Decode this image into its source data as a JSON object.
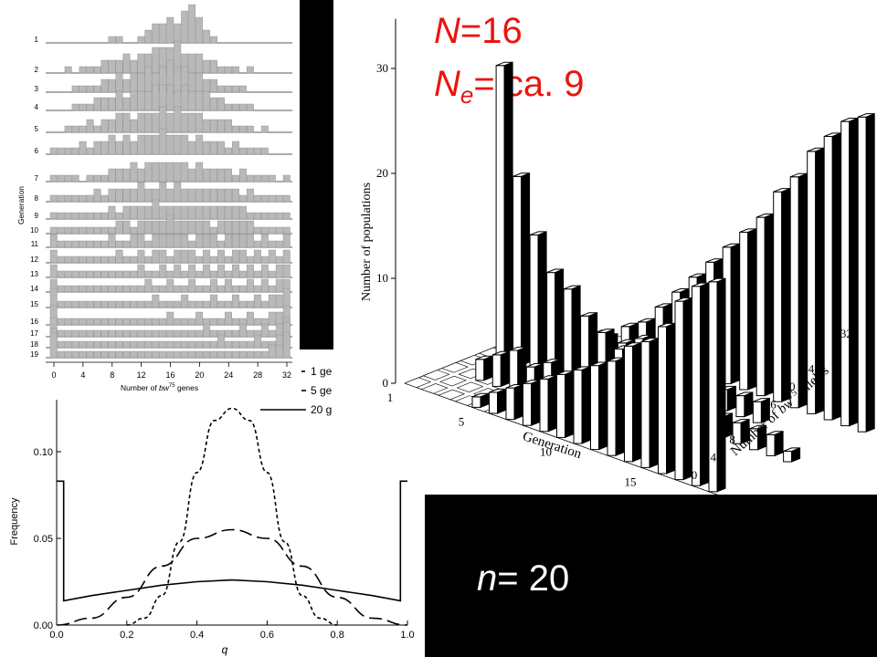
{
  "page": {
    "background": "#ffffff",
    "panel_color": "#000000",
    "title_color": "#e8160f"
  },
  "slide": {
    "title_line1_var": "N",
    "title_line1_rest": "=16",
    "title_line2_var": "N",
    "title_line2_sub": "e",
    "title_line2_rest": "= ca. 9",
    "n_var": "n",
    "n_rest": "= 20"
  },
  "chart_data": [
    {
      "type": "bar",
      "panel": "histogram-stack",
      "ylabel": "Generation",
      "xlabel": "Number of bw75 genes",
      "xlabel_parts": [
        "Number of ",
        "bw",
        "75",
        " genes"
      ],
      "generations": [
        "1",
        "2",
        "3",
        "4",
        "5",
        "6",
        "7",
        "8",
        "9",
        "10",
        "11",
        "12",
        "13",
        "14",
        "15",
        "16",
        "17",
        "18",
        "19"
      ],
      "x_ticks": [
        "0",
        "4",
        "8",
        "12",
        "16",
        "20",
        "24",
        "28",
        "32"
      ],
      "xlim": [
        0,
        32
      ],
      "bar_color": "#b9b9b9",
      "rows": [
        [
          0,
          0,
          0,
          0,
          0,
          0,
          0,
          0,
          1,
          1,
          0,
          0,
          1,
          2,
          3,
          3,
          4,
          3,
          5,
          6,
          4,
          2,
          1,
          0,
          0,
          0,
          0,
          0,
          0,
          0,
          0,
          0,
          0
        ],
        [
          0,
          0,
          1,
          0,
          1,
          1,
          1,
          2,
          2,
          2,
          3,
          2,
          3,
          3,
          4,
          4,
          4,
          5,
          3,
          3,
          3,
          2,
          2,
          1,
          1,
          1,
          0,
          1,
          0,
          0,
          0,
          0,
          0
        ],
        [
          0,
          0,
          0,
          1,
          1,
          1,
          1,
          2,
          2,
          3,
          2,
          3,
          3,
          4,
          3,
          4,
          5,
          4,
          4,
          3,
          3,
          2,
          2,
          1,
          1,
          1,
          1,
          0,
          0,
          0,
          0,
          0,
          0
        ],
        [
          0,
          0,
          0,
          1,
          1,
          1,
          2,
          2,
          2,
          3,
          2,
          3,
          3,
          3,
          4,
          4,
          4,
          3,
          4,
          3,
          3,
          3,
          2,
          2,
          1,
          1,
          1,
          1,
          0,
          0,
          0,
          0,
          0
        ],
        [
          0,
          0,
          1,
          1,
          1,
          2,
          1,
          2,
          2,
          3,
          3,
          2,
          3,
          3,
          3,
          4,
          3,
          4,
          3,
          3,
          3,
          2,
          2,
          2,
          2,
          1,
          1,
          1,
          0,
          1,
          0,
          0,
          0
        ],
        [
          1,
          1,
          1,
          1,
          2,
          1,
          2,
          2,
          3,
          2,
          3,
          2,
          3,
          3,
          3,
          4,
          3,
          3,
          3,
          2,
          3,
          2,
          2,
          2,
          1,
          2,
          1,
          1,
          1,
          1,
          0,
          0,
          0
        ],
        [
          1,
          1,
          1,
          1,
          0,
          1,
          1,
          1,
          2,
          2,
          2,
          3,
          2,
          3,
          3,
          3,
          3,
          3,
          3,
          2,
          3,
          2,
          2,
          2,
          2,
          1,
          2,
          1,
          1,
          1,
          1,
          0,
          1
        ],
        [
          1,
          1,
          1,
          1,
          1,
          1,
          2,
          1,
          2,
          2,
          2,
          2,
          3,
          2,
          2,
          3,
          2,
          3,
          2,
          2,
          2,
          2,
          2,
          2,
          2,
          2,
          1,
          2,
          1,
          1,
          1,
          1,
          1
        ],
        [
          1,
          1,
          1,
          1,
          1,
          1,
          1,
          1,
          2,
          1,
          2,
          2,
          2,
          2,
          3,
          2,
          2,
          2,
          2,
          2,
          2,
          2,
          2,
          2,
          2,
          2,
          2,
          1,
          1,
          1,
          1,
          1,
          1
        ],
        [
          1,
          1,
          1,
          1,
          1,
          1,
          1,
          1,
          1,
          2,
          2,
          1,
          2,
          2,
          2,
          2,
          3,
          2,
          2,
          2,
          2,
          2,
          1,
          2,
          2,
          2,
          2,
          2,
          1,
          1,
          1,
          1,
          1
        ],
        [
          2,
          1,
          1,
          1,
          1,
          1,
          1,
          1,
          2,
          1,
          1,
          2,
          2,
          1,
          2,
          2,
          2,
          2,
          2,
          1,
          2,
          2,
          2,
          1,
          2,
          2,
          2,
          2,
          1,
          2,
          1,
          1,
          2
        ],
        [
          2,
          1,
          1,
          1,
          1,
          1,
          1,
          1,
          1,
          2,
          1,
          1,
          2,
          1,
          2,
          2,
          1,
          2,
          2,
          2,
          1,
          2,
          1,
          2,
          1,
          2,
          2,
          1,
          2,
          1,
          2,
          1,
          2
        ],
        [
          2,
          1,
          1,
          1,
          1,
          1,
          1,
          1,
          1,
          1,
          1,
          1,
          2,
          1,
          1,
          2,
          1,
          2,
          1,
          2,
          1,
          2,
          1,
          2,
          1,
          2,
          1,
          2,
          1,
          2,
          1,
          2,
          2
        ],
        [
          2,
          1,
          1,
          1,
          1,
          1,
          1,
          1,
          1,
          1,
          1,
          1,
          1,
          2,
          1,
          1,
          2,
          1,
          1,
          2,
          1,
          1,
          2,
          1,
          2,
          1,
          1,
          2,
          1,
          2,
          1,
          2,
          2
        ],
        [
          3,
          1,
          1,
          1,
          1,
          1,
          1,
          1,
          1,
          1,
          1,
          1,
          1,
          1,
          2,
          1,
          1,
          1,
          2,
          1,
          1,
          1,
          2,
          1,
          1,
          2,
          1,
          1,
          2,
          1,
          2,
          2,
          3
        ],
        [
          3,
          1,
          1,
          1,
          1,
          1,
          1,
          1,
          1,
          1,
          1,
          1,
          1,
          1,
          1,
          1,
          2,
          1,
          1,
          1,
          2,
          1,
          1,
          1,
          2,
          1,
          1,
          2,
          1,
          1,
          2,
          2,
          3
        ],
        [
          3,
          1,
          1,
          1,
          1,
          1,
          1,
          1,
          1,
          1,
          1,
          1,
          1,
          1,
          1,
          1,
          1,
          1,
          1,
          1,
          1,
          2,
          1,
          1,
          1,
          1,
          2,
          1,
          1,
          2,
          1,
          2,
          3
        ],
        [
          3,
          1,
          1,
          1,
          1,
          1,
          1,
          1,
          1,
          1,
          1,
          1,
          1,
          1,
          1,
          1,
          1,
          1,
          1,
          1,
          1,
          1,
          1,
          2,
          1,
          1,
          1,
          1,
          2,
          1,
          1,
          2,
          4
        ],
        [
          4,
          1,
          1,
          1,
          1,
          1,
          1,
          1,
          1,
          1,
          1,
          1,
          1,
          1,
          1,
          1,
          1,
          1,
          1,
          1,
          1,
          1,
          1,
          1,
          1,
          1,
          1,
          1,
          1,
          1,
          2,
          2,
          4
        ]
      ]
    },
    {
      "type": "bar",
      "panel": "3d-histogram",
      "ylabel": "Number of populations",
      "xlabel": "Generation",
      "zlabel": "Number of bw75 alleles",
      "zlabel_parts": [
        "Number of ",
        "bw",
        "75",
        " alleles"
      ],
      "y_ticks": [
        "0",
        "10",
        "20",
        "30"
      ],
      "ylim": [
        0,
        33
      ],
      "generation_ticks": [
        "1",
        "5",
        "10",
        "15",
        "19"
      ],
      "allele_ticks": [
        "0",
        "4",
        "8",
        "16",
        "20",
        "24",
        "32"
      ],
      "bars": [
        {
          "g": 5,
          "a": 0,
          "v": 1
        },
        {
          "g": 6,
          "a": 0,
          "v": 2
        },
        {
          "g": 7,
          "a": 0,
          "v": 3
        },
        {
          "g": 8,
          "a": 0,
          "v": 4
        },
        {
          "g": 9,
          "a": 0,
          "v": 5
        },
        {
          "g": 10,
          "a": 0,
          "v": 6
        },
        {
          "g": 11,
          "a": 0,
          "v": 7
        },
        {
          "g": 12,
          "a": 0,
          "v": 8
        },
        {
          "g": 13,
          "a": 0,
          "v": 9
        },
        {
          "g": 14,
          "a": 0,
          "v": 11
        },
        {
          "g": 15,
          "a": 0,
          "v": 12
        },
        {
          "g": 16,
          "a": 0,
          "v": 14
        },
        {
          "g": 17,
          "a": 0,
          "v": 17
        },
        {
          "g": 18,
          "a": 0,
          "v": 19
        },
        {
          "g": 19,
          "a": 0,
          "v": 20
        },
        {
          "g": 3,
          "a": 8,
          "v": 2
        },
        {
          "g": 4,
          "a": 8,
          "v": 3
        },
        {
          "g": 5,
          "a": 8,
          "v": 4
        },
        {
          "g": 6,
          "a": 8,
          "v": 3
        },
        {
          "g": 7,
          "a": 8,
          "v": 4
        },
        {
          "g": 8,
          "a": 8,
          "v": 3
        },
        {
          "g": 9,
          "a": 8,
          "v": 3
        },
        {
          "g": 10,
          "a": 8,
          "v": 2
        },
        {
          "g": 11,
          "a": 8,
          "v": 2
        },
        {
          "g": 12,
          "a": 8,
          "v": 2
        },
        {
          "g": 13,
          "a": 8,
          "v": 1
        },
        {
          "g": 14,
          "a": 8,
          "v": 2
        },
        {
          "g": 2,
          "a": 16,
          "v": 28
        },
        {
          "g": 3,
          "a": 16,
          "v": 18
        },
        {
          "g": 4,
          "a": 16,
          "v": 13
        },
        {
          "g": 5,
          "a": 16,
          "v": 10
        },
        {
          "g": 6,
          "a": 16,
          "v": 9
        },
        {
          "g": 7,
          "a": 16,
          "v": 7
        },
        {
          "g": 8,
          "a": 16,
          "v": 6
        },
        {
          "g": 9,
          "a": 16,
          "v": 5
        },
        {
          "g": 10,
          "a": 16,
          "v": 5
        },
        {
          "g": 11,
          "a": 16,
          "v": 4
        },
        {
          "g": 12,
          "a": 16,
          "v": 4
        },
        {
          "g": 13,
          "a": 16,
          "v": 3
        },
        {
          "g": 14,
          "a": 16,
          "v": 3
        },
        {
          "g": 15,
          "a": 16,
          "v": 2
        },
        {
          "g": 16,
          "a": 16,
          "v": 2
        },
        {
          "g": 17,
          "a": 16,
          "v": 2
        },
        {
          "g": 18,
          "a": 16,
          "v": 2
        },
        {
          "g": 19,
          "a": 16,
          "v": 1
        },
        {
          "g": 5,
          "a": 24,
          "v": 2
        },
        {
          "g": 6,
          "a": 24,
          "v": 3
        },
        {
          "g": 7,
          "a": 24,
          "v": 3
        },
        {
          "g": 8,
          "a": 24,
          "v": 4
        },
        {
          "g": 9,
          "a": 24,
          "v": 4
        },
        {
          "g": 10,
          "a": 24,
          "v": 3
        },
        {
          "g": 11,
          "a": 24,
          "v": 3
        },
        {
          "g": 12,
          "a": 24,
          "v": 3
        },
        {
          "g": 13,
          "a": 24,
          "v": 2
        },
        {
          "g": 14,
          "a": 24,
          "v": 2
        },
        {
          "g": 15,
          "a": 24,
          "v": 2
        },
        {
          "g": 5,
          "a": 32,
          "v": 2
        },
        {
          "g": 6,
          "a": 32,
          "v": 3
        },
        {
          "g": 7,
          "a": 32,
          "v": 5
        },
        {
          "g": 8,
          "a": 32,
          "v": 7
        },
        {
          "g": 9,
          "a": 32,
          "v": 9
        },
        {
          "g": 10,
          "a": 32,
          "v": 11
        },
        {
          "g": 11,
          "a": 32,
          "v": 13
        },
        {
          "g": 12,
          "a": 32,
          "v": 15
        },
        {
          "g": 13,
          "a": 32,
          "v": 17
        },
        {
          "g": 14,
          "a": 32,
          "v": 20
        },
        {
          "g": 15,
          "a": 32,
          "v": 22
        },
        {
          "g": 16,
          "a": 32,
          "v": 25
        },
        {
          "g": 17,
          "a": 32,
          "v": 27
        },
        {
          "g": 18,
          "a": 32,
          "v": 29
        },
        {
          "g": 19,
          "a": 32,
          "v": 30
        }
      ]
    },
    {
      "type": "line",
      "panel": "frequency-distribution",
      "xlabel": "q",
      "ylabel": "Frequency",
      "xlim": [
        0,
        1
      ],
      "ylim": [
        0,
        0.13
      ],
      "x_ticks": [
        "0.0",
        "0.2",
        "0.4",
        "0.6",
        "0.8",
        "1.0"
      ],
      "y_ticks": [
        "0.00",
        "0.05",
        "0.10"
      ],
      "legend_position": "top-right",
      "series": [
        {
          "name": "1 ge",
          "style": "dotted",
          "x": [
            0.2,
            0.25,
            0.3,
            0.35,
            0.4,
            0.45,
            0.5,
            0.55,
            0.6,
            0.65,
            0.7,
            0.75,
            0.8
          ],
          "values": [
            0.0,
            0.004,
            0.017,
            0.048,
            0.088,
            0.118,
            0.125,
            0.118,
            0.088,
            0.048,
            0.017,
            0.004,
            0.0
          ]
        },
        {
          "name": "5 ge",
          "style": "dashed",
          "x": [
            0.0,
            0.1,
            0.2,
            0.3,
            0.4,
            0.5,
            0.6,
            0.7,
            0.8,
            0.9,
            1.0
          ],
          "values": [
            0.0,
            0.004,
            0.016,
            0.034,
            0.05,
            0.055,
            0.05,
            0.034,
            0.016,
            0.004,
            0.0
          ]
        },
        {
          "name": "20 g",
          "style": "solid",
          "x": [
            0.0,
            0.02,
            0.1,
            0.2,
            0.3,
            0.4,
            0.5,
            0.6,
            0.7,
            0.8,
            0.9,
            0.98,
            1.0
          ],
          "values": [
            0.083,
            0.014,
            0.017,
            0.02,
            0.023,
            0.025,
            0.026,
            0.025,
            0.023,
            0.02,
            0.017,
            0.014,
            0.083
          ]
        }
      ]
    }
  ]
}
